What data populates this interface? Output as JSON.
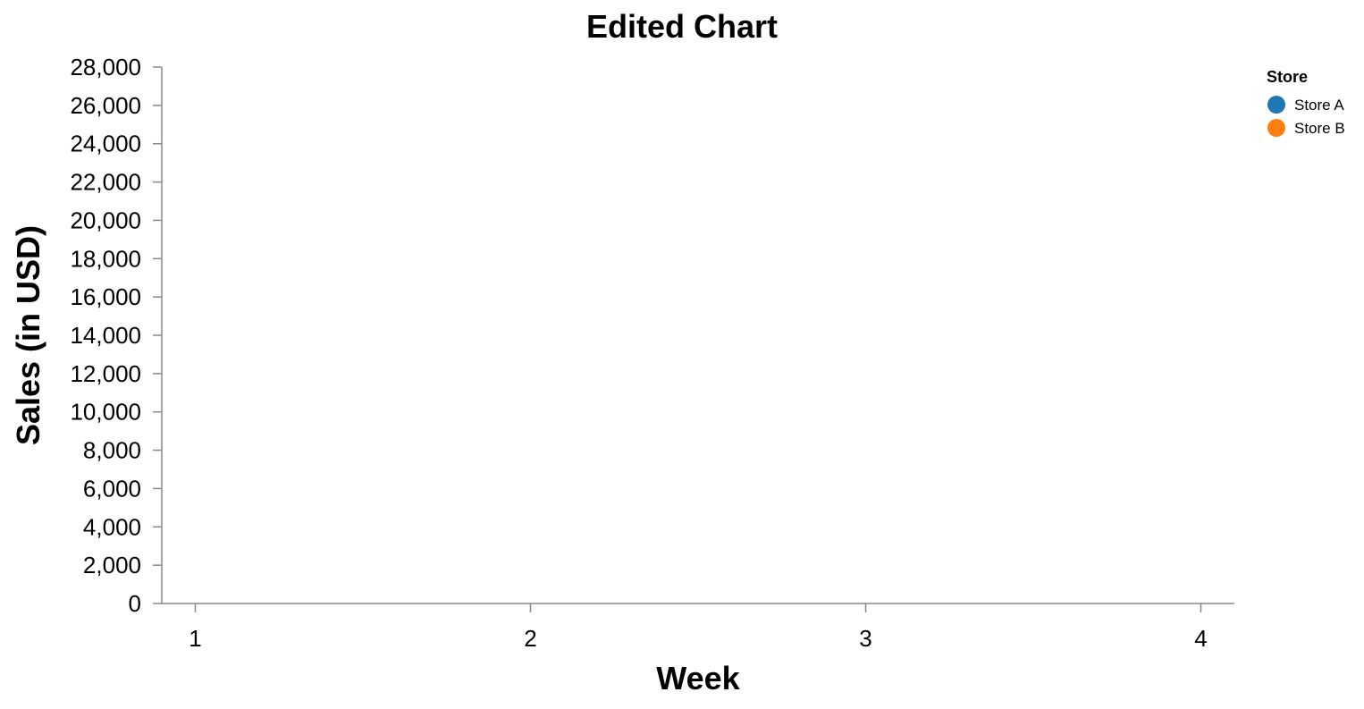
{
  "chart_data": {
    "type": "scatter",
    "title": "Edited Chart",
    "xlabel": "Week",
    "ylabel": "Sales (in USD)",
    "x_ticks": [
      1,
      2,
      3,
      4
    ],
    "x_tick_labels": [
      "1",
      "2",
      "3",
      "4"
    ],
    "y_ticks": [
      0,
      2000,
      4000,
      6000,
      8000,
      10000,
      12000,
      14000,
      16000,
      18000,
      20000,
      22000,
      24000,
      26000,
      28000
    ],
    "y_tick_labels": [
      "0",
      "2,000",
      "4,000",
      "6,000",
      "8,000",
      "10,000",
      "12,000",
      "14,000",
      "16,000",
      "18,000",
      "20,000",
      "22,000",
      "24,000",
      "26,000",
      "28,000"
    ],
    "xlim": [
      0.9,
      4.1
    ],
    "ylim": [
      0,
      28000
    ],
    "grid": false,
    "legend": {
      "title": "Store",
      "placement": "top-right",
      "entries": [
        {
          "name": "Store A",
          "color": "#1f77b4"
        },
        {
          "name": "Store B",
          "color": "#ff7f0e"
        }
      ]
    },
    "series": [
      {
        "name": "Store A",
        "color": "#1f77b4",
        "points": []
      },
      {
        "name": "Store B",
        "color": "#ff7f0e",
        "points": []
      }
    ]
  }
}
